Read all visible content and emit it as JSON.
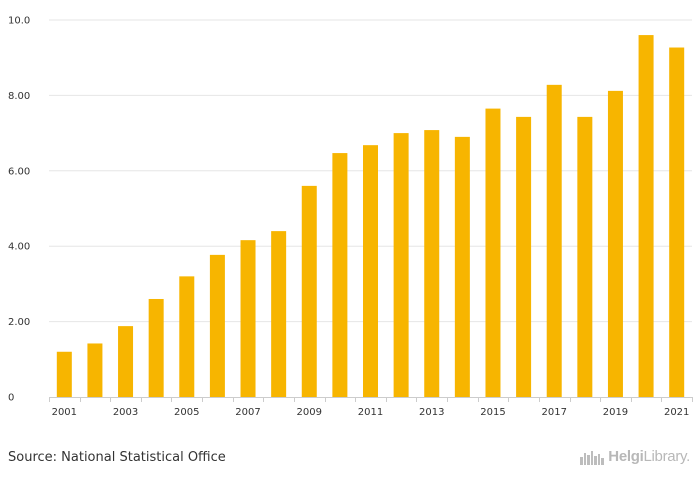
{
  "chart_data": {
    "type": "bar",
    "categories": [
      "2001",
      "2002",
      "2003",
      "2004",
      "2005",
      "2006",
      "2007",
      "2008",
      "2009",
      "2010",
      "2011",
      "2012",
      "2013",
      "2014",
      "2015",
      "2016",
      "2017",
      "2018",
      "2019",
      "2020",
      "2021"
    ],
    "values": [
      1.2,
      1.42,
      1.88,
      2.6,
      3.2,
      3.77,
      4.16,
      4.4,
      5.6,
      6.47,
      6.68,
      7.0,
      7.08,
      6.9,
      7.65,
      7.43,
      8.28,
      7.43,
      8.12,
      9.6,
      9.27
    ],
    "x_tick_labels": [
      "2001",
      "2003",
      "2005",
      "2007",
      "2009",
      "2011",
      "2013",
      "2015",
      "2017",
      "2019",
      "2021"
    ],
    "y_ticks": [
      0,
      2,
      4,
      6,
      8,
      10
    ],
    "y_tick_labels": [
      "0",
      "2.00",
      "4.00",
      "6.00",
      "8.00",
      "10.0"
    ],
    "ylim": [
      0,
      10
    ],
    "title": "",
    "xlabel": "",
    "ylabel": "",
    "grid": true,
    "bar_color": "#f7b500"
  },
  "footer": {
    "source": "Source: National Statistical Office",
    "brand_bold": "Helgi",
    "brand_light": "Library."
  }
}
